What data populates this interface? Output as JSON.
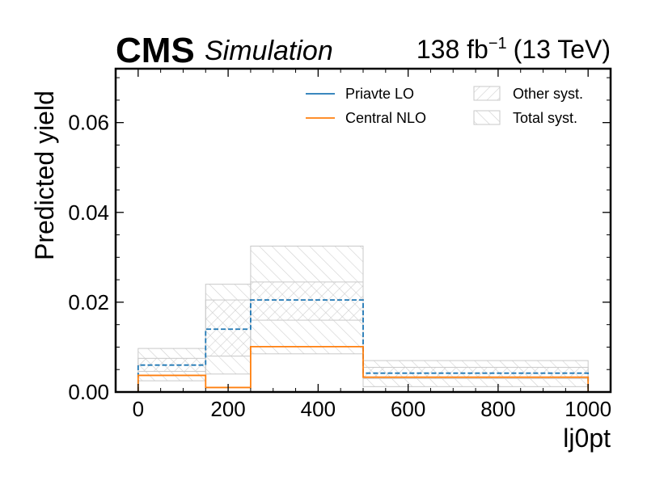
{
  "header": {
    "experiment": "CMS",
    "status": "Simulation",
    "lumi_value": "138 fb",
    "lumi_exponent": "−1",
    "energy": "(13 TeV)"
  },
  "chart_data": {
    "type": "step",
    "xlabel": "lj0pt",
    "ylabel": "Predicted yield",
    "xlim": [
      -50,
      1050
    ],
    "ylim": [
      0,
      0.072
    ],
    "xticks": [
      0,
      200,
      400,
      600,
      800,
      1000
    ],
    "xtick_labels": [
      "0",
      "200",
      "400",
      "600",
      "800",
      "1000"
    ],
    "yticks": [
      0.0,
      0.02,
      0.04,
      0.06
    ],
    "ytick_labels": [
      "0.00",
      "0.02",
      "0.04",
      "0.06"
    ],
    "bin_edges": [
      0,
      150,
      250,
      500,
      1000
    ],
    "series": [
      {
        "name": "Priavte LO",
        "color": "#1f77b4",
        "style": "dashed",
        "values": [
          0.006,
          0.014,
          0.0205,
          0.0042
        ]
      },
      {
        "name": "Central NLO",
        "color": "#ff7f0e",
        "style": "solid",
        "values": [
          0.0037,
          0.001,
          0.0101,
          0.0033
        ]
      }
    ],
    "bands": [
      {
        "name": "Other syst.",
        "hatch": "////",
        "color": "#c8c8c8",
        "low": [
          0.0046,
          0.008,
          0.016,
          0.003
        ],
        "high": [
          0.0075,
          0.0205,
          0.0245,
          0.0055
        ]
      },
      {
        "name": "Total syst.",
        "hatch": "\\\\\\\\",
        "color": "#c8c8c8",
        "low": [
          0.0025,
          0.004,
          0.0085,
          0.0012
        ],
        "high": [
          0.0097,
          0.024,
          0.0325,
          0.007
        ]
      }
    ],
    "legend_position": "upper-right",
    "grid": false
  }
}
